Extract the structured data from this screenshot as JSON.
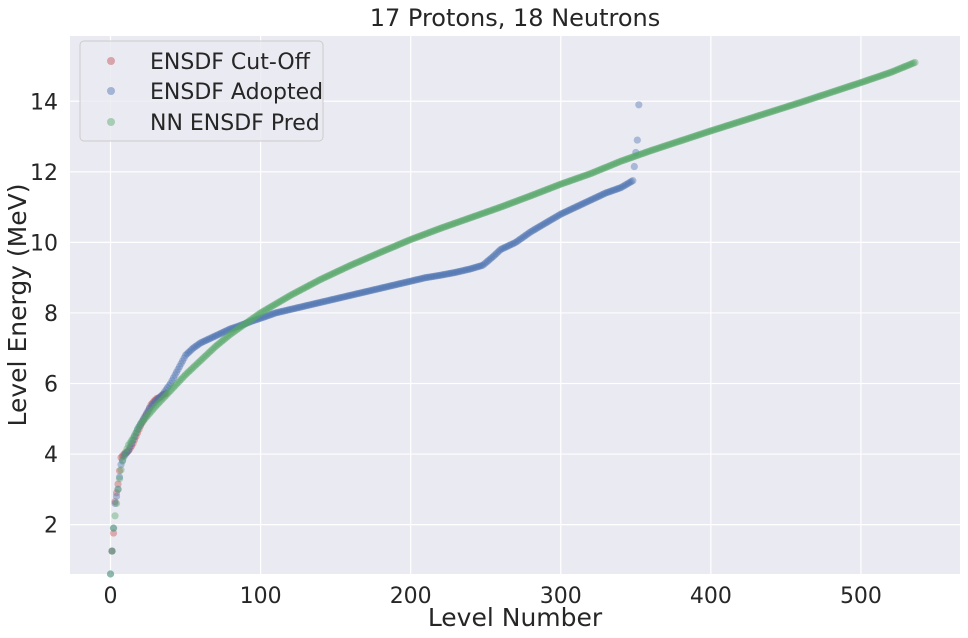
{
  "chart_data": {
    "type": "scatter",
    "title": "17 Protons, 18 Neutrons",
    "xlabel": "Level Number",
    "ylabel": "Level Energy (MeV)",
    "xlim": [
      -27,
      566
    ],
    "ylim": [
      0.6,
      15.85
    ],
    "xticks": [
      0,
      100,
      200,
      300,
      400,
      500
    ],
    "yticks": [
      2,
      4,
      6,
      8,
      10,
      12,
      14
    ],
    "grid": true,
    "legend_position": "top-left",
    "background": "#eaeaf2",
    "series": [
      {
        "name": "ENSDF Cut-Off",
        "color": "#c44e52",
        "points": [
          [
            1,
            1.25
          ],
          [
            2,
            1.76
          ],
          [
            3,
            2.65
          ],
          [
            5,
            3.15
          ],
          [
            7,
            3.9
          ],
          [
            9,
            4.0
          ],
          [
            11,
            4.05
          ],
          [
            13,
            4.15
          ],
          [
            15,
            4.3
          ],
          [
            18,
            4.6
          ],
          [
            20,
            4.8
          ],
          [
            23,
            5.05
          ],
          [
            25,
            5.2
          ],
          [
            27,
            5.4
          ],
          [
            29,
            5.5
          ],
          [
            31,
            5.58
          ],
          [
            33,
            5.6
          ],
          [
            35,
            5.68
          ],
          [
            37,
            5.72
          ]
        ]
      },
      {
        "name": "ENSDF Adopted",
        "color": "#4c72b0",
        "points": [
          [
            0,
            0.6
          ],
          [
            1,
            1.25
          ],
          [
            2,
            1.9
          ],
          [
            3,
            2.6
          ],
          [
            5,
            3.0
          ],
          [
            7,
            3.7
          ],
          [
            9,
            3.95
          ],
          [
            12,
            4.1
          ],
          [
            15,
            4.4
          ],
          [
            18,
            4.7
          ],
          [
            22,
            5.0
          ],
          [
            26,
            5.3
          ],
          [
            30,
            5.5
          ],
          [
            35,
            5.7
          ],
          [
            40,
            6.0
          ],
          [
            45,
            6.4
          ],
          [
            50,
            6.8
          ],
          [
            55,
            7.0
          ],
          [
            60,
            7.15
          ],
          [
            65,
            7.25
          ],
          [
            70,
            7.35
          ],
          [
            75,
            7.45
          ],
          [
            80,
            7.55
          ],
          [
            85,
            7.62
          ],
          [
            90,
            7.7
          ],
          [
            95,
            7.78
          ],
          [
            100,
            7.85
          ],
          [
            110,
            8.0
          ],
          [
            120,
            8.1
          ],
          [
            130,
            8.2
          ],
          [
            140,
            8.3
          ],
          [
            150,
            8.4
          ],
          [
            160,
            8.5
          ],
          [
            170,
            8.6
          ],
          [
            180,
            8.7
          ],
          [
            190,
            8.8
          ],
          [
            200,
            8.9
          ],
          [
            210,
            9.0
          ],
          [
            220,
            9.07
          ],
          [
            230,
            9.15
          ],
          [
            240,
            9.25
          ],
          [
            248,
            9.35
          ],
          [
            255,
            9.6
          ],
          [
            260,
            9.8
          ],
          [
            270,
            10.0
          ],
          [
            280,
            10.3
          ],
          [
            290,
            10.55
          ],
          [
            300,
            10.8
          ],
          [
            310,
            11.0
          ],
          [
            320,
            11.2
          ],
          [
            330,
            11.4
          ],
          [
            340,
            11.55
          ],
          [
            348,
            11.75
          ],
          [
            350,
            12.55
          ],
          [
            351,
            12.9
          ],
          [
            352,
            13.9
          ]
        ]
      },
      {
        "name": "NN ENSDF Pred",
        "color": "#55a868",
        "points": [
          [
            0,
            0.6
          ],
          [
            2,
            1.9
          ],
          [
            4,
            2.6
          ],
          [
            5,
            3.0
          ],
          [
            6,
            3.3
          ],
          [
            7,
            3.55
          ],
          [
            8,
            3.8
          ],
          [
            10,
            4.05
          ],
          [
            12,
            4.25
          ],
          [
            15,
            4.45
          ],
          [
            20,
            4.85
          ],
          [
            25,
            5.1
          ],
          [
            30,
            5.35
          ],
          [
            40,
            5.8
          ],
          [
            50,
            6.25
          ],
          [
            60,
            6.65
          ],
          [
            70,
            7.05
          ],
          [
            80,
            7.4
          ],
          [
            90,
            7.7
          ],
          [
            100,
            8.0
          ],
          [
            120,
            8.5
          ],
          [
            140,
            8.95
          ],
          [
            160,
            9.35
          ],
          [
            180,
            9.72
          ],
          [
            200,
            10.08
          ],
          [
            220,
            10.4
          ],
          [
            240,
            10.7
          ],
          [
            260,
            11.0
          ],
          [
            280,
            11.32
          ],
          [
            300,
            11.65
          ],
          [
            320,
            11.95
          ],
          [
            340,
            12.3
          ],
          [
            360,
            12.6
          ],
          [
            380,
            12.88
          ],
          [
            400,
            13.16
          ],
          [
            420,
            13.43
          ],
          [
            440,
            13.7
          ],
          [
            460,
            13.97
          ],
          [
            480,
            14.25
          ],
          [
            500,
            14.53
          ],
          [
            520,
            14.82
          ],
          [
            536,
            15.1
          ]
        ]
      }
    ]
  }
}
